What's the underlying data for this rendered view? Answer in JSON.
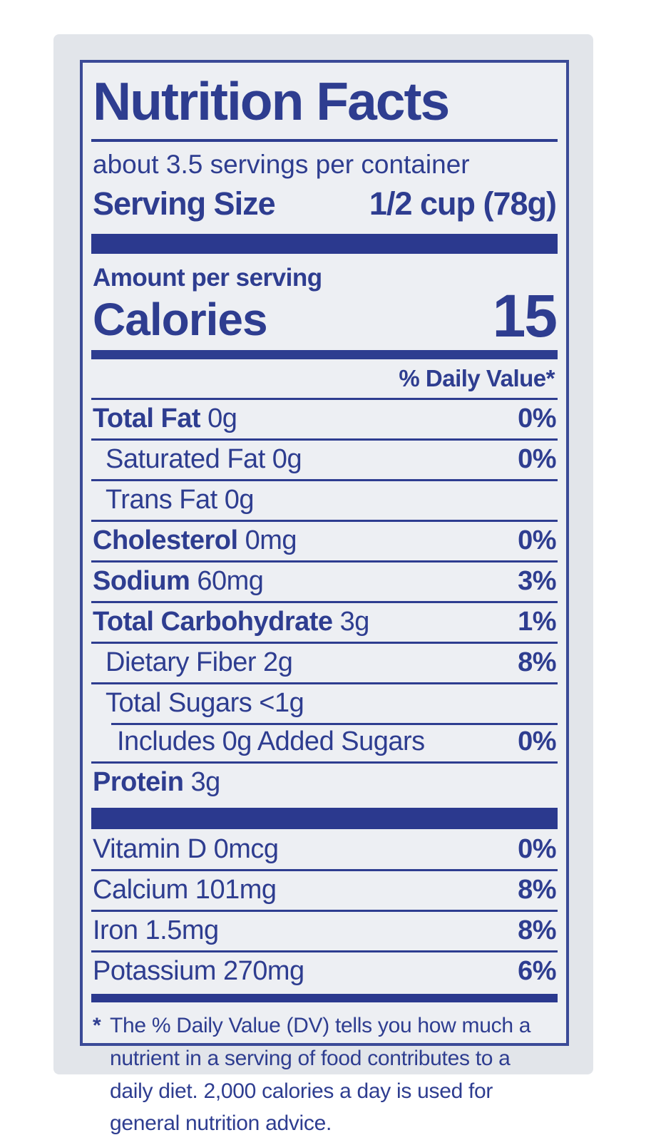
{
  "label": {
    "title": "Nutrition Facts",
    "servings_per_container": "about 3.5 servings per container",
    "serving_size_label": "Serving Size",
    "serving_size_value": "1/2 cup (78g)",
    "amount_per_serving": "Amount per serving",
    "calories_label": "Calories",
    "calories_value": "15",
    "daily_value_header": "% Daily Value*",
    "nutrients": [
      {
        "name": "Total Fat",
        "amount": "0g",
        "dv": "0%",
        "bold": true,
        "indent": 0,
        "sep": "full"
      },
      {
        "name": "Saturated Fat",
        "amount": "0g",
        "dv": "0%",
        "bold": false,
        "indent": 1,
        "sep": "full"
      },
      {
        "name": "Trans Fat",
        "amount": "0g",
        "dv": "",
        "bold": false,
        "indent": 1,
        "sep": "full"
      },
      {
        "name": "Cholesterol",
        "amount": "0mg",
        "dv": "0%",
        "bold": true,
        "indent": 0,
        "sep": "full"
      },
      {
        "name": "Sodium",
        "amount": "60mg",
        "dv": "3%",
        "bold": true,
        "indent": 0,
        "sep": "full"
      },
      {
        "name": "Total Carbohydrate",
        "amount": "3g",
        "dv": "1%",
        "bold": true,
        "indent": 0,
        "sep": "full"
      },
      {
        "name": "Dietary Fiber",
        "amount": "2g",
        "dv": "8%",
        "bold": false,
        "indent": 1,
        "sep": "full"
      },
      {
        "name": "Total Sugars",
        "amount": "<1g",
        "dv": "",
        "bold": false,
        "indent": 1,
        "sep": "full"
      },
      {
        "name": "Includes 0g Added Sugars",
        "amount": "",
        "dv": "0%",
        "bold": false,
        "indent": 2,
        "sep": "indent"
      },
      {
        "name": "Protein",
        "amount": "3g",
        "dv": "",
        "bold": true,
        "indent": 0,
        "sep": "full"
      }
    ],
    "micronutrients": [
      {
        "name": "Vitamin D",
        "amount": "0mcg",
        "dv": "0%",
        "bold": false,
        "indent": 0,
        "sep": "none"
      },
      {
        "name": "Calcium",
        "amount": "101mg",
        "dv": "8%",
        "bold": false,
        "indent": 0,
        "sep": "full"
      },
      {
        "name": "Iron",
        "amount": "1.5mg",
        "dv": "8%",
        "bold": false,
        "indent": 0,
        "sep": "full"
      },
      {
        "name": "Potassium",
        "amount": "270mg",
        "dv": "6%",
        "bold": false,
        "indent": 0,
        "sep": "full"
      }
    ],
    "footnote_marker": "*",
    "footnote": "The % Daily Value (DV) tells you how much a nutrient in a serving of food contributes to a daily diet. 2,000 calories a day is used for general nutrition advice."
  },
  "colors": {
    "ink": "#2e3d90",
    "bar": "#2b398e",
    "border": "#3b4a97",
    "card_background": "#e2e5ea",
    "label_background": "#edeff3",
    "page_background": "#ffffff"
  }
}
